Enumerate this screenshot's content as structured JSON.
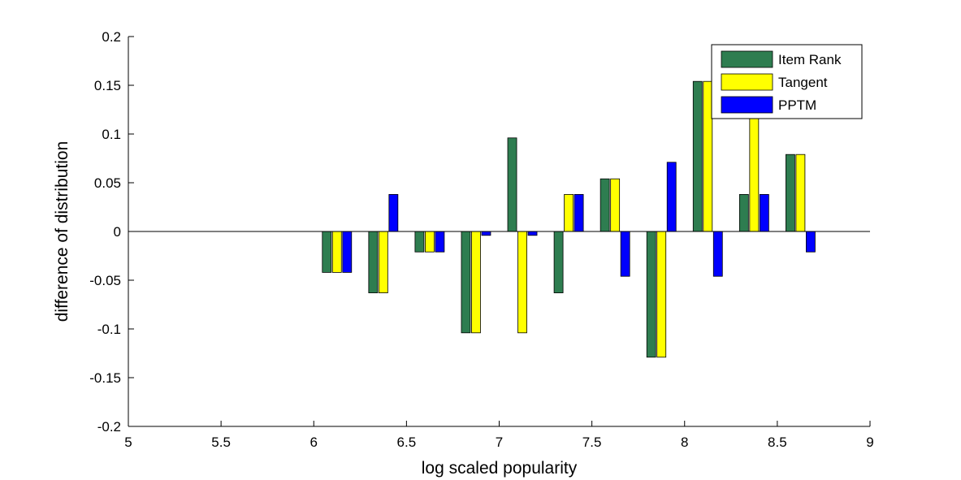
{
  "chart_data": {
    "type": "bar",
    "xlabel": "log scaled popularity",
    "ylabel": "difference of distribution",
    "xlim": [
      5,
      9
    ],
    "ylim": [
      -0.2,
      0.2
    ],
    "xticks": [
      "5",
      "5.5",
      "6",
      "6.5",
      "7",
      "7.5",
      "8",
      "8.5",
      "9"
    ],
    "yticks": [
      "-0.2",
      "-0.15",
      "-0.1",
      "-0.05",
      "0",
      "0.05",
      "0.1",
      "0.15",
      "0.2"
    ],
    "legend_position": "top-right",
    "x": [
      6.125,
      6.375,
      6.625,
      6.875,
      7.125,
      7.375,
      7.625,
      7.875,
      8.125,
      8.375,
      8.625
    ],
    "series": [
      {
        "name": "Item Rank",
        "color": "#2e7d50",
        "values": [
          -0.042,
          -0.063,
          -0.021,
          -0.104,
          0.096,
          -0.063,
          0.054,
          -0.129,
          0.154,
          0.038,
          0.079
        ]
      },
      {
        "name": "Tangent",
        "color": "#ffff00",
        "values": [
          -0.042,
          -0.063,
          -0.021,
          -0.104,
          -0.104,
          0.038,
          0.054,
          -0.129,
          0.154,
          0.125,
          0.079
        ]
      },
      {
        "name": "PPTM",
        "color": "#0000ff",
        "values": [
          -0.042,
          0.038,
          -0.021,
          -0.004,
          -0.004,
          0.038,
          -0.046,
          0.071,
          -0.046,
          0.038,
          -0.021
        ]
      }
    ]
  }
}
